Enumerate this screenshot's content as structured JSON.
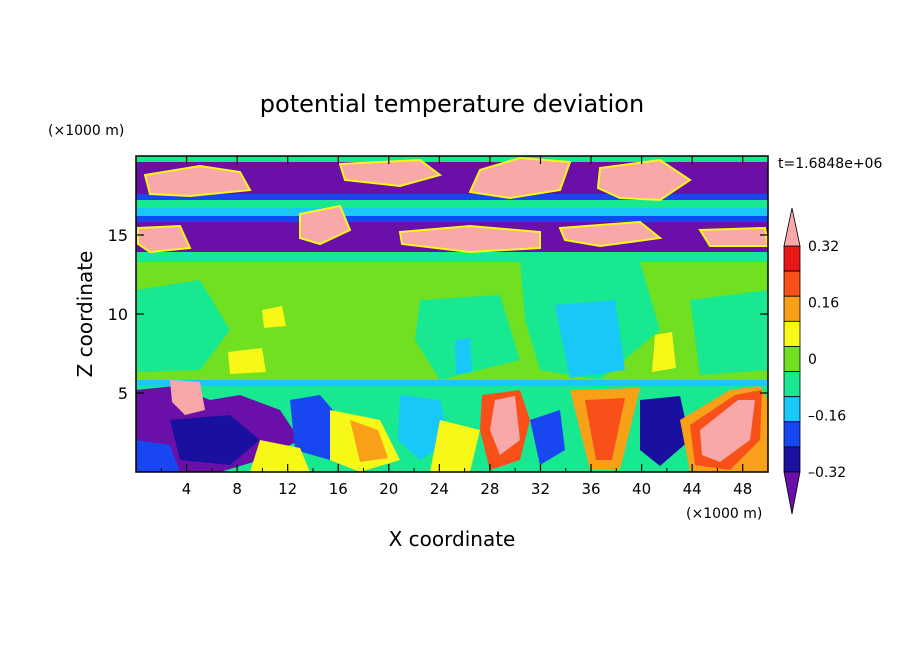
{
  "chart_data": {
    "type": "heatmap",
    "title": "potential temperature deviation",
    "xlabel": "X coordinate",
    "ylabel": "Z coordinate",
    "x_unit": "(×1000 m)",
    "y_unit": "(×1000 m)",
    "time_label": "t=1.6848e+06",
    "xlim": [
      0,
      50
    ],
    "ylim": [
      0,
      20
    ],
    "x_ticks": [
      "4",
      "8",
      "12",
      "16",
      "20",
      "24",
      "28",
      "32",
      "36",
      "40",
      "44",
      "48"
    ],
    "x_tick_values": [
      4,
      8,
      12,
      16,
      20,
      24,
      28,
      32,
      36,
      40,
      44,
      48
    ],
    "y_ticks": [
      "5",
      "10",
      "15"
    ],
    "y_tick_values": [
      5,
      10,
      15
    ],
    "colorbar": {
      "levels": [
        -0.4,
        -0.32,
        -0.24,
        -0.16,
        -0.08,
        0,
        0.08,
        0.16,
        0.24,
        0.32,
        0.4
      ],
      "labels": [
        "0.32",
        "0.16",
        "0",
        "–0.16",
        "–0.32"
      ],
      "label_values": [
        0.32,
        0.16,
        0,
        -0.16,
        -0.32
      ],
      "colors": [
        "#6a0fa8",
        "#1a10a0",
        "#1846f0",
        "#18c8f8",
        "#18e890",
        "#70e020",
        "#f8f818",
        "#f8a018",
        "#f85018",
        "#e81818",
        "#f8a8a8"
      ]
    }
  }
}
